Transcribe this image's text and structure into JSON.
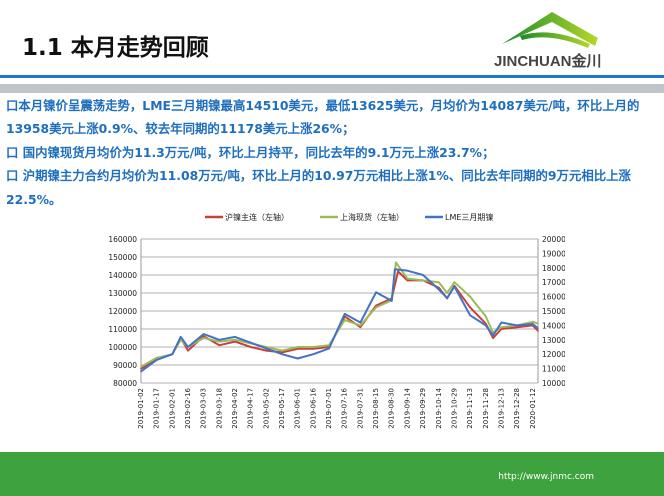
{
  "header": {
    "title": "1.1  本月走势回顾",
    "logo_text": "JINCHUAN金川"
  },
  "bullets": [
    "口本月镍价呈震荡走势，LME三月期镍最高14510美元，最低13625美元，月均价为14087美元/吨，环比上月的13958美元上涨0.9%、较去年同期的11178美元上涨26%；",
    "口 国内镍现货月均价为11.3万元/吨，环比上月持平，同比去年的9.1万元上涨23.7%；",
    "口 沪期镍主力合约月均价为11.08万元/吨，环比上月的10.97万元相比上涨1%、同比去年同期的9万元相比上涨22.5%。"
  ],
  "footer": {
    "url": "http://www.jnmc.com"
  },
  "chart_data": {
    "type": "line",
    "title": "",
    "legend_position": "top",
    "grid": true,
    "y_left": {
      "range": [
        80000,
        160000
      ],
      "ticks": [
        80000,
        90000,
        100000,
        110000,
        120000,
        130000,
        140000,
        150000,
        160000
      ]
    },
    "y_right": {
      "range": [
        10000,
        20000
      ],
      "ticks": [
        10000,
        11000,
        12000,
        13000,
        14000,
        15000,
        16000,
        17000,
        18000,
        19000,
        20000
      ]
    },
    "x_ticks": [
      "2019-01-02",
      "2019-01-17",
      "2019-02-01",
      "2019-02-16",
      "2019-03-03",
      "2019-03-18",
      "2019-04-02",
      "2019-04-17",
      "2019-05-02",
      "2019-05-17",
      "2019-06-01",
      "2019-06-16",
      "2019-07-01",
      "2019-07-16",
      "2019-07-31",
      "2019-08-15",
      "2019-08-30",
      "2019-09-14",
      "2019-09-29",
      "2019-10-14",
      "2019-10-29",
      "2019-11-13",
      "2019-11-28",
      "2019-12-13",
      "2019-12-28",
      "2020-01-12"
    ],
    "series": [
      {
        "name": "沪镍主连（左轴）",
        "axis": "left",
        "color": "#c9403a",
        "x": [
          "2019-01-02",
          "2019-01-17",
          "2019-02-01",
          "2019-02-09",
          "2019-02-16",
          "2019-03-03",
          "2019-03-18",
          "2019-04-02",
          "2019-04-17",
          "2019-05-02",
          "2019-05-17",
          "2019-06-01",
          "2019-06-16",
          "2019-07-01",
          "2019-07-16",
          "2019-07-31",
          "2019-08-15",
          "2019-08-30",
          "2019-09-05",
          "2019-09-14",
          "2019-09-29",
          "2019-10-14",
          "2019-10-22",
          "2019-10-29",
          "2019-11-13",
          "2019-11-28",
          "2019-12-05",
          "2019-12-13",
          "2019-12-28",
          "2020-01-12",
          "2020-01-17"
        ],
        "y": [
          88000,
          93000,
          96000,
          105000,
          98000,
          106000,
          101000,
          103000,
          100000,
          98000,
          97000,
          99000,
          99000,
          100000,
          117000,
          111000,
          123000,
          127000,
          142000,
          137000,
          137000,
          133000,
          127000,
          134000,
          122000,
          113000,
          105000,
          110000,
          111000,
          112000,
          109000
        ]
      },
      {
        "name": "上海现货（左轴）",
        "axis": "left",
        "color": "#9bbb59",
        "x": [
          "2019-01-02",
          "2019-01-17",
          "2019-02-01",
          "2019-02-09",
          "2019-02-16",
          "2019-03-03",
          "2019-03-18",
          "2019-04-02",
          "2019-04-17",
          "2019-05-02",
          "2019-05-17",
          "2019-06-01",
          "2019-06-16",
          "2019-07-01",
          "2019-07-16",
          "2019-07-31",
          "2019-08-15",
          "2019-08-30",
          "2019-09-03",
          "2019-09-14",
          "2019-09-29",
          "2019-10-14",
          "2019-10-22",
          "2019-10-29",
          "2019-11-13",
          "2019-11-28",
          "2019-12-05",
          "2019-12-13",
          "2019-12-28",
          "2020-01-12",
          "2020-01-17"
        ],
        "y": [
          89000,
          94000,
          96000,
          104000,
          100000,
          105000,
          103000,
          104000,
          102000,
          100000,
          98000,
          100000,
          100000,
          101000,
          115000,
          112000,
          122000,
          126000,
          147000,
          138000,
          137000,
          136000,
          130000,
          136000,
          128000,
          117000,
          108000,
          111000,
          112000,
          114000,
          113000
        ]
      },
      {
        "name": "LME三月期镍",
        "axis": "right",
        "color": "#4472c4",
        "x": [
          "2019-01-02",
          "2019-01-17",
          "2019-02-01",
          "2019-02-09",
          "2019-02-16",
          "2019-03-03",
          "2019-03-18",
          "2019-04-02",
          "2019-04-17",
          "2019-05-02",
          "2019-05-17",
          "2019-06-01",
          "2019-06-16",
          "2019-07-01",
          "2019-07-16",
          "2019-07-31",
          "2019-08-15",
          "2019-08-30",
          "2019-09-02",
          "2019-09-14",
          "2019-09-29",
          "2019-10-14",
          "2019-10-22",
          "2019-10-29",
          "2019-11-13",
          "2019-11-28",
          "2019-12-05",
          "2019-12-13",
          "2019-12-28",
          "2020-01-12",
          "2020-01-17"
        ],
        "y": [
          10800,
          11600,
          12000,
          13200,
          12500,
          13400,
          13000,
          13200,
          12800,
          12400,
          12000,
          11700,
          12000,
          12400,
          14800,
          14200,
          16300,
          15700,
          17900,
          17800,
          17500,
          16500,
          15900,
          16700,
          14700,
          14000,
          13300,
          14200,
          14000,
          14100,
          13800
        ]
      }
    ]
  }
}
